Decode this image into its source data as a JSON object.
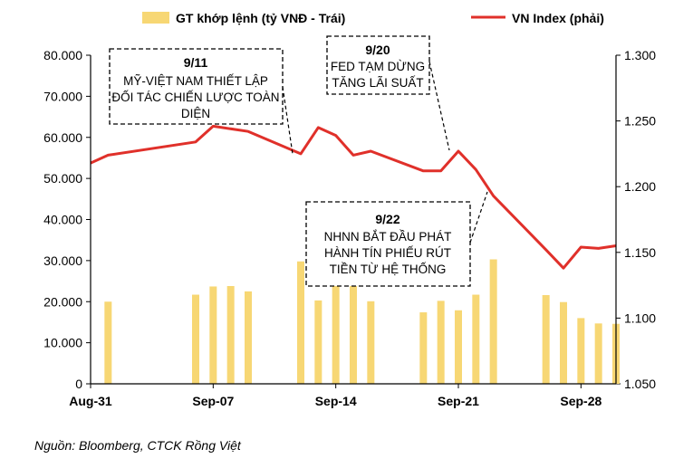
{
  "chart_data": {
    "type": "bar",
    "title": "",
    "legend": {
      "position": "top",
      "bar_label": "GT khớp lệnh (tỷ VNĐ - Trái)",
      "line_label": "VN Index (phải)"
    },
    "colors": {
      "bar": "#F7D774",
      "line": "#E0302A"
    },
    "x_tick_labels": [
      "Aug-31",
      "Sep-07",
      "Sep-14",
      "Sep-21",
      "Sep-28"
    ],
    "y_left": {
      "ylim": [
        0,
        80000
      ],
      "ticks": [
        "0",
        "10.000",
        "20.000",
        "30.000",
        "40.000",
        "50.000",
        "60.000",
        "70.000",
        "80.000"
      ]
    },
    "y_right": {
      "ylim": [
        1050,
        1300
      ],
      "ticks": [
        "1.050",
        "1.100",
        "1.150",
        "1.200",
        "1.250",
        "1.300"
      ]
    },
    "series": [
      {
        "name": "GT khớp lệnh (tỷ VNĐ - Trái)",
        "kind": "bar",
        "points": [
          {
            "x": "Sep-01",
            "y": 20000
          },
          {
            "x": "Sep-06",
            "y": 21700
          },
          {
            "x": "Sep-07",
            "y": 23700
          },
          {
            "x": "Sep-08",
            "y": 23800
          },
          {
            "x": "Sep-09",
            "y": 22500
          },
          {
            "x": "Sep-12",
            "y": 29800
          },
          {
            "x": "Sep-13",
            "y": 20300
          },
          {
            "x": "Sep-14",
            "y": 27700
          },
          {
            "x": "Sep-15",
            "y": 25300
          },
          {
            "x": "Sep-16",
            "y": 20100
          },
          {
            "x": "Sep-19",
            "y": 17400
          },
          {
            "x": "Sep-20",
            "y": 20200
          },
          {
            "x": "Sep-21",
            "y": 17900
          },
          {
            "x": "Sep-22",
            "y": 21700
          },
          {
            "x": "Sep-23",
            "y": 30300
          },
          {
            "x": "Sep-26",
            "y": 21600
          },
          {
            "x": "Sep-27",
            "y": 19900
          },
          {
            "x": "Sep-28",
            "y": 16000
          },
          {
            "x": "Sep-29",
            "y": 14700
          },
          {
            "x": "Sep-30",
            "y": 14600
          }
        ]
      },
      {
        "name": "VN Index (phải)",
        "kind": "line",
        "points": [
          {
            "x": "Aug-31",
            "y": 1218
          },
          {
            "x": "Sep-01",
            "y": 1224
          },
          {
            "x": "Sep-06",
            "y": 1234
          },
          {
            "x": "Sep-07",
            "y": 1246
          },
          {
            "x": "Sep-09",
            "y": 1242
          },
          {
            "x": "Sep-12",
            "y": 1225
          },
          {
            "x": "Sep-13",
            "y": 1245
          },
          {
            "x": "Sep-14",
            "y": 1239
          },
          {
            "x": "Sep-15",
            "y": 1224
          },
          {
            "x": "Sep-16",
            "y": 1227
          },
          {
            "x": "Sep-19",
            "y": 1212
          },
          {
            "x": "Sep-20",
            "y": 1212
          },
          {
            "x": "Sep-21",
            "y": 1227
          },
          {
            "x": "Sep-22",
            "y": 1213
          },
          {
            "x": "Sep-23",
            "y": 1193
          },
          {
            "x": "Sep-26",
            "y": 1152
          },
          {
            "x": "Sep-27",
            "y": 1138
          },
          {
            "x": "Sep-28",
            "y": 1154
          },
          {
            "x": "Sep-29",
            "y": 1153
          },
          {
            "x": "Sep-30",
            "y": 1155
          }
        ]
      }
    ],
    "annotations": [
      {
        "date": "9/11",
        "text": [
          "MỸ-VIỆT NAM THIẾT LẬP",
          "ĐỐI TÁC CHIẾN LƯỢC TOÀN",
          "DIỆN"
        ],
        "target": "Sep-12"
      },
      {
        "date": "9/20",
        "text": [
          "FED TẠM DỪNG",
          "TĂNG LÃI SUẤT"
        ],
        "target": "Sep-21"
      },
      {
        "date": "9/22",
        "text": [
          "NHNN BẮT ĐẦU PHÁT",
          "HÀNH TÍN PHIẾU RÚT",
          "TIỀN TỪ HỆ THỐNG"
        ],
        "target": "Sep-23"
      }
    ],
    "source": "Nguồn: Bloomberg, CTCK Rồng Việt"
  }
}
